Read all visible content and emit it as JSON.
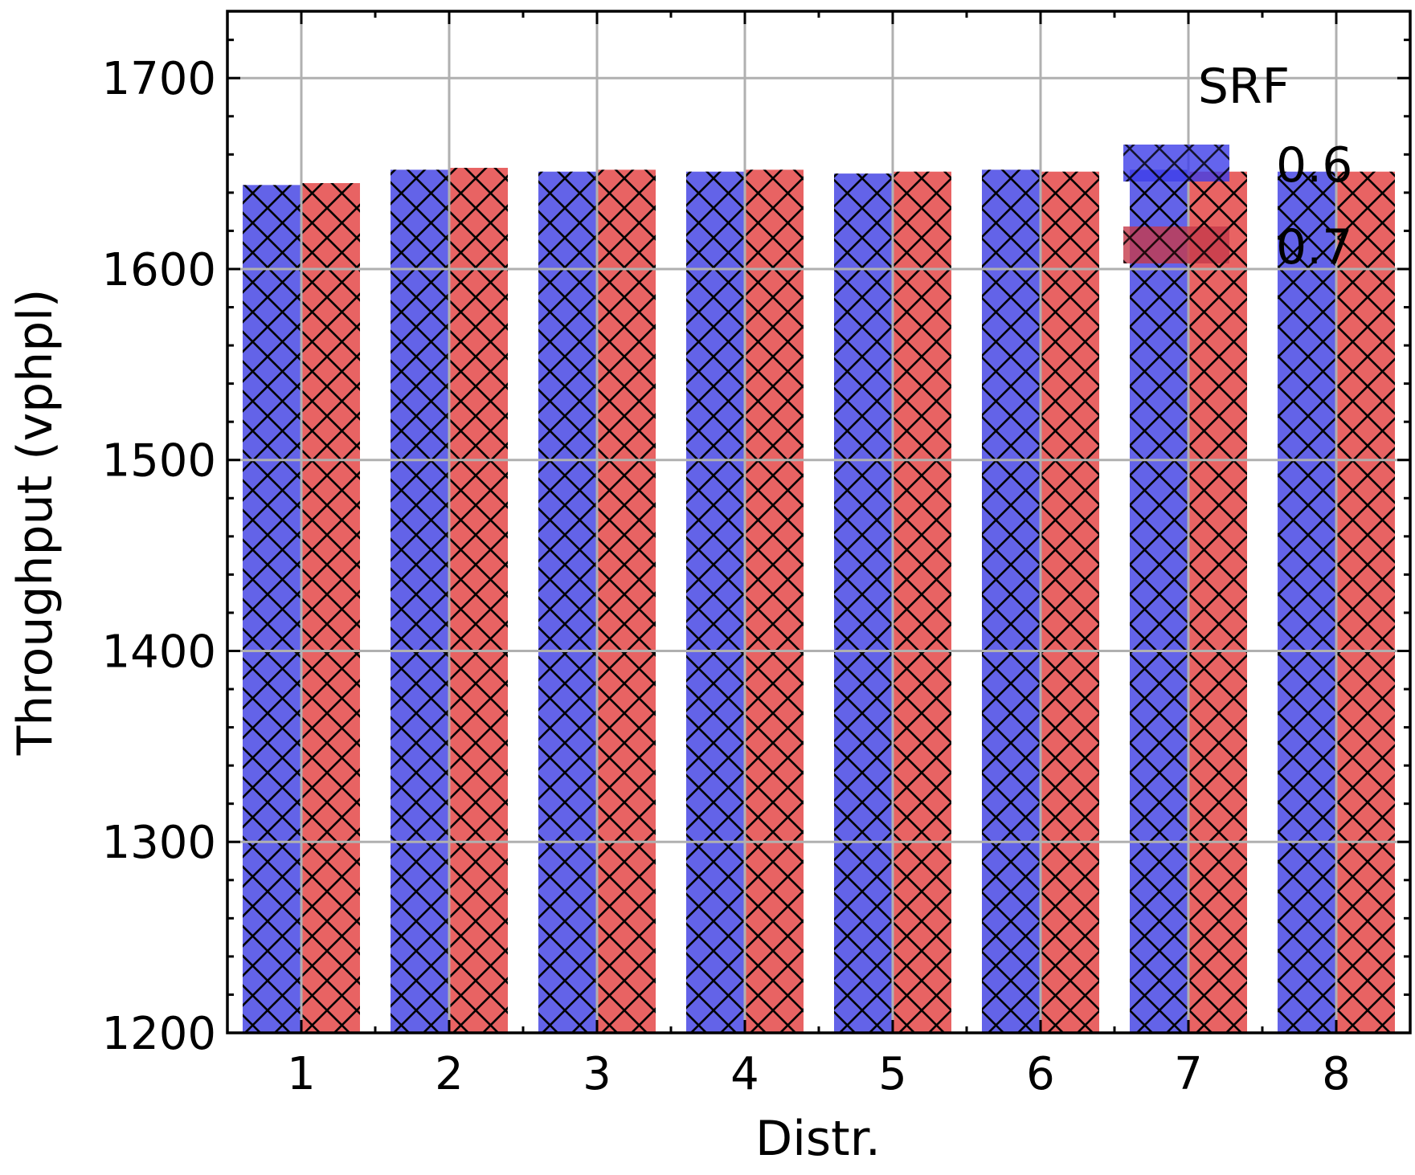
{
  "chart_data": {
    "type": "bar",
    "xlabel": "Distr.",
    "ylabel": "Throughput (vphpl)",
    "ylim": [
      1200,
      1735
    ],
    "yticks": [
      1200,
      1300,
      1400,
      1500,
      1600,
      1700
    ],
    "categories": [
      "1",
      "2",
      "3",
      "4",
      "5",
      "6",
      "7",
      "8"
    ],
    "grid": true,
    "legend": {
      "title": "SRF",
      "placement": "top-right"
    },
    "series": [
      {
        "name": "0.6",
        "color": "#6363e8",
        "legend_color": "#3d3de8",
        "hatch": "crosshatch",
        "values": [
          1644,
          1652,
          1651,
          1651,
          1650,
          1652,
          1652,
          1651
        ]
      },
      {
        "name": "0.7",
        "color": "#e86363",
        "legend_color": "#c43a4a",
        "hatch": "crosshatch",
        "values": [
          1645,
          1653,
          1652,
          1652,
          1651,
          1651,
          1651,
          1651
        ]
      }
    ]
  }
}
